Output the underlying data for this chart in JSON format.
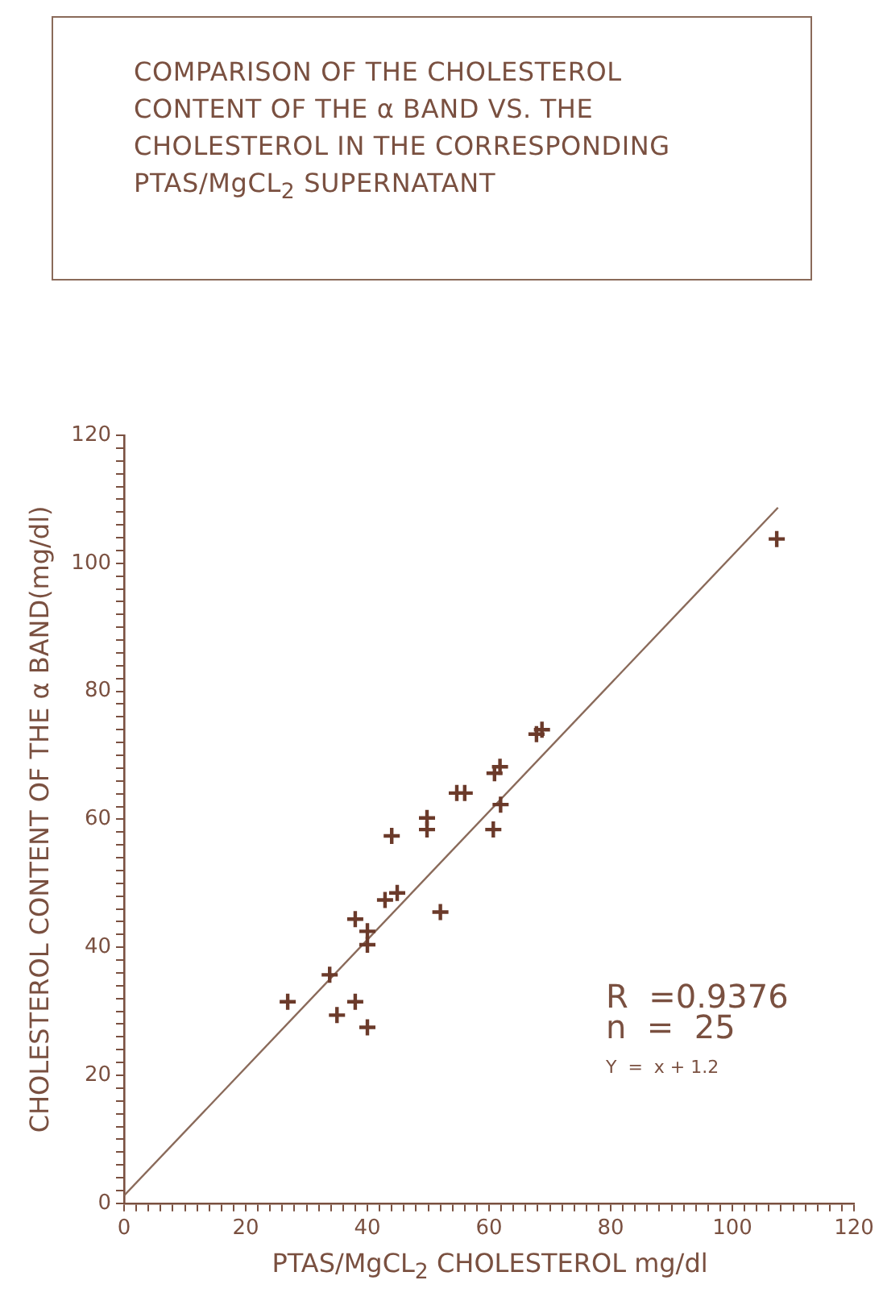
{
  "chart_data": {
    "type": "scatter",
    "title": "COMPARISON OF THE CHOLESTEROL CONTENT OF THE α BAND VS. THE CHOLESTEROL IN THE CORRESPONDING PTAS/MgCL$_{2}$ SUPERNATANT",
    "xlabel": "PTAS/MgCL$_{2}$ CHOLESTEROL  mg/dl",
    "ylabel": "CHOLESTEROL CONTENT OF THE α BAND(mg/dl)",
    "series": [
      {
        "type": "scatter",
        "color": "#6b3a2a",
        "marker": "cross",
        "x": [
          26.9,
          33.8,
          35,
          38,
          40,
          38,
          40,
          40,
          42.9,
          44.9,
          44,
          52,
          49.8,
          49.8,
          54.7,
          56,
          60.7,
          61.9,
          60.9,
          61.8,
          67.8,
          68.7,
          107.3
        ],
        "values": [
          31.5,
          35.7,
          29.4,
          31.5,
          27.5,
          44.4,
          42.5,
          40.4,
          47.4,
          48.5,
          57.4,
          45.5,
          60.2,
          58.4,
          64.1,
          64.1,
          58.4,
          62.3,
          67.2,
          68.2,
          73.3,
          74,
          103.8
        ]
      },
      {
        "type": "line",
        "color": "#8a6a5a",
        "marker": "none",
        "x": [
          0,
          107.5
        ],
        "values": [
          1.2,
          108.7
        ]
      }
    ],
    "annotations": [
      "R  =0.9376",
      "n  =  25",
      "Y  =  x + 1.2"
    ],
    "xlim": [
      0,
      120
    ],
    "ylim": [
      0,
      120
    ],
    "xticks": [
      0,
      {
        "value": 2,
        "label": null
      },
      {
        "value": 4,
        "label": null
      },
      {
        "value": 6,
        "label": null
      },
      {
        "value": 8,
        "label": null
      },
      {
        "value": 10,
        "label": null
      },
      {
        "value": 12,
        "label": null
      },
      {
        "value": 14,
        "label": null
      },
      {
        "value": 16,
        "label": null
      },
      {
        "value": 18,
        "label": null
      },
      20,
      {
        "value": 22,
        "label": null
      },
      {
        "value": 24,
        "label": null
      },
      {
        "value": 26,
        "label": null
      },
      {
        "value": 28,
        "label": null
      },
      {
        "value": 30,
        "label": null
      },
      {
        "value": 32,
        "label": null
      },
      {
        "value": 34,
        "label": null
      },
      {
        "value": 36,
        "label": null
      },
      {
        "value": 38,
        "label": null
      },
      40,
      {
        "value": 42,
        "label": null
      },
      {
        "value": 44,
        "label": null
      },
      {
        "value": 46,
        "label": null
      },
      {
        "value": 48,
        "label": null
      },
      {
        "value": 50,
        "label": null
      },
      {
        "value": 52,
        "label": null
      },
      {
        "value": 54,
        "label": null
      },
      {
        "value": 56,
        "label": null
      },
      {
        "value": 58,
        "label": null
      },
      60,
      {
        "value": 62,
        "label": null
      },
      {
        "value": 64,
        "label": null
      },
      {
        "value": 66,
        "label": null
      },
      {
        "value": 68,
        "label": null
      },
      {
        "value": 70,
        "label": null
      },
      {
        "value": 72,
        "label": null
      },
      {
        "value": 74,
        "label": null
      },
      {
        "value": 76,
        "label": null
      },
      {
        "value": 78,
        "label": null
      },
      80,
      {
        "value": 82,
        "label": null
      },
      {
        "value": 84,
        "label": null
      },
      {
        "value": 86,
        "label": null
      },
      {
        "value": 88,
        "label": null
      },
      {
        "value": 90,
        "label": null
      },
      {
        "value": 92,
        "label": null
      },
      {
        "value": 94,
        "label": null
      },
      {
        "value": 96,
        "label": null
      },
      {
        "value": 98,
        "label": null
      },
      100,
      {
        "value": 102,
        "label": null
      },
      {
        "value": 104,
        "label": null
      },
      {
        "value": 106,
        "label": null
      },
      {
        "value": 108,
        "label": null
      },
      {
        "value": 110,
        "label": null
      },
      {
        "value": 112,
        "label": null
      },
      {
        "value": 114,
        "label": null
      },
      {
        "value": 116,
        "label": null
      },
      {
        "value": 118,
        "label": null
      },
      120
    ],
    "yticks": [
      0,
      {
        "value": 2,
        "label": null
      },
      {
        "value": 4,
        "label": null
      },
      {
        "value": 6,
        "label": null
      },
      {
        "value": 8,
        "label": null
      },
      {
        "value": 10,
        "label": null
      },
      {
        "value": 12,
        "label": null
      },
      {
        "value": 14,
        "label": null
      },
      {
        "value": 16,
        "label": null
      },
      {
        "value": 18,
        "label": null
      },
      20,
      {
        "value": 22,
        "label": null
      },
      {
        "value": 24,
        "label": null
      },
      {
        "value": 26,
        "label": null
      },
      {
        "value": 28,
        "label": null
      },
      {
        "value": 30,
        "label": null
      },
      {
        "value": 32,
        "label": null
      },
      {
        "value": 34,
        "label": null
      },
      {
        "value": 36,
        "label": null
      },
      {
        "value": 38,
        "label": null
      },
      40,
      {
        "value": 42,
        "label": null
      },
      {
        "value": 44,
        "label": null
      },
      {
        "value": 46,
        "label": null
      },
      {
        "value": 48,
        "label": null
      },
      {
        "value": 50,
        "label": null
      },
      {
        "value": 52,
        "label": null
      },
      {
        "value": 54,
        "label": null
      },
      {
        "value": 56,
        "label": null
      },
      {
        "value": 58,
        "label": null
      },
      60,
      {
        "value": 62,
        "label": null
      },
      {
        "value": 64,
        "label": null
      },
      {
        "value": 66,
        "label": null
      },
      {
        "value": 68,
        "label": null
      },
      {
        "value": 70,
        "label": null
      },
      {
        "value": 72,
        "label": null
      },
      {
        "value": 74,
        "label": null
      },
      {
        "value": 76,
        "label": null
      },
      {
        "value": 78,
        "label": null
      },
      80,
      {
        "value": 82,
        "label": null
      },
      {
        "value": 84,
        "label": null
      },
      {
        "value": 86,
        "label": null
      },
      {
        "value": 88,
        "label": null
      },
      {
        "value": 90,
        "label": null
      },
      {
        "value": 92,
        "label": null
      },
      {
        "value": 94,
        "label": null
      },
      {
        "value": 96,
        "label": null
      },
      {
        "value": 98,
        "label": null
      },
      100,
      {
        "value": 102,
        "label": null
      },
      {
        "value": 104,
        "label": null
      },
      {
        "value": 106,
        "label": null
      },
      {
        "value": 108,
        "label": null
      },
      {
        "value": 110,
        "label": null
      },
      {
        "value": 112,
        "label": null
      },
      {
        "value": 114,
        "label": null
      },
      {
        "value": 116,
        "label": null
      },
      {
        "value": 118,
        "label": null
      },
      120
    ]
  }
}
